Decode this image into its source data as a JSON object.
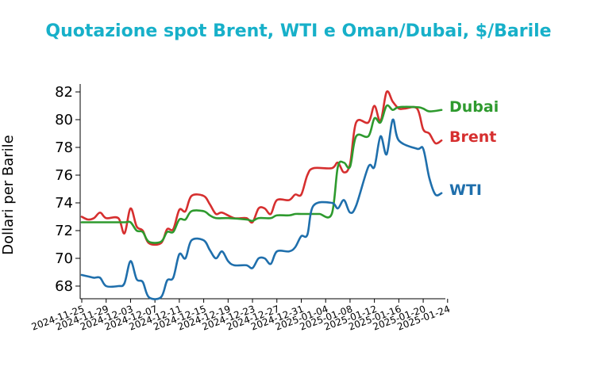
{
  "chart_data": {
    "type": "line",
    "title": "Quotazione spot Brent, WTI e Oman/Dubai, $/Barile",
    "xlabel": "",
    "ylabel": "Dollari per Barile",
    "ylim": [
      67.2,
      82.5
    ],
    "yticks": [
      68,
      70,
      72,
      74,
      76,
      78,
      80,
      82
    ],
    "x_start": "2024-11-25",
    "x_end": "2025-01-23",
    "xtick_labels": [
      "2024-11-25",
      "2024-11-29",
      "2024-12-03",
      "2024-12-07",
      "2024-12-11",
      "2024-12-15",
      "2024-12-19",
      "2024-12-23",
      "2024-12-27",
      "2024-12-31",
      "2025-01-04",
      "2025-01-08",
      "2025-01-12",
      "2025-01-16",
      "2025-01-20",
      "2025-01-24"
    ],
    "grid": false,
    "legend": "labels at line ends (right)",
    "title_color": "#17b0c9",
    "series": [
      {
        "name": "Brent",
        "color": "#d62f2f",
        "x": [
          "2024-11-25",
          "2024-11-26",
          "2024-11-27",
          "2024-11-28",
          "2024-11-29",
          "2024-12-01",
          "2024-12-02",
          "2024-12-03",
          "2024-12-04",
          "2024-12-05",
          "2024-12-06",
          "2024-12-08",
          "2024-12-09",
          "2024-12-10",
          "2024-12-11",
          "2024-12-12",
          "2024-12-13",
          "2024-12-15",
          "2024-12-16",
          "2024-12-17",
          "2024-12-18",
          "2024-12-20",
          "2024-12-22",
          "2024-12-23",
          "2024-12-24",
          "2024-12-25",
          "2024-12-26",
          "2024-12-27",
          "2024-12-29",
          "2024-12-30",
          "2024-12-31",
          "2025-01-01",
          "2025-01-02",
          "2025-01-05",
          "2025-01-06",
          "2025-01-07",
          "2025-01-08",
          "2025-01-09",
          "2025-01-11",
          "2025-01-12",
          "2025-01-13",
          "2025-01-14",
          "2025-01-15",
          "2025-01-16",
          "2025-01-17",
          "2025-01-19",
          "2025-01-20",
          "2025-01-21",
          "2025-01-22",
          "2025-01-23"
        ],
        "y": [
          73.0,
          72.8,
          72.9,
          73.3,
          72.9,
          72.9,
          71.8,
          73.6,
          72.3,
          72.0,
          71.1,
          71.1,
          72.1,
          72.1,
          73.5,
          73.4,
          74.5,
          74.5,
          73.9,
          73.2,
          73.3,
          72.9,
          72.9,
          72.6,
          73.6,
          73.6,
          73.2,
          74.2,
          74.2,
          74.6,
          74.6,
          76.0,
          76.5,
          76.5,
          76.9,
          76.2,
          76.8,
          79.8,
          79.8,
          81.0,
          79.9,
          82.0,
          81.3,
          80.8,
          80.8,
          80.8,
          79.3,
          79.0,
          78.3,
          78.5
        ]
      },
      {
        "name": "Dubai",
        "color": "#2e9a2e",
        "x": [
          "2024-11-25",
          "2024-11-27",
          "2024-11-29",
          "2024-12-02",
          "2024-12-03",
          "2024-12-04",
          "2024-12-05",
          "2024-12-06",
          "2024-12-08",
          "2024-12-09",
          "2024-12-10",
          "2024-12-11",
          "2024-12-12",
          "2024-12-13",
          "2024-12-15",
          "2024-12-16",
          "2024-12-17",
          "2024-12-19",
          "2024-12-22",
          "2024-12-23",
          "2024-12-24",
          "2024-12-26",
          "2024-12-27",
          "2024-12-29",
          "2024-12-30",
          "2024-12-31",
          "2025-01-02",
          "2025-01-03",
          "2025-01-05",
          "2025-01-06",
          "2025-01-07",
          "2025-01-08",
          "2025-01-09",
          "2025-01-11",
          "2025-01-12",
          "2025-01-13",
          "2025-01-14",
          "2025-01-15",
          "2025-01-16",
          "2025-01-19",
          "2025-01-20",
          "2025-01-21",
          "2025-01-23"
        ],
        "y": [
          72.6,
          72.6,
          72.6,
          72.6,
          72.6,
          72.0,
          71.9,
          71.2,
          71.2,
          71.9,
          71.9,
          72.8,
          72.8,
          73.4,
          73.4,
          73.1,
          72.9,
          72.9,
          72.8,
          72.7,
          72.9,
          72.9,
          73.1,
          73.1,
          73.2,
          73.2,
          73.2,
          73.2,
          73.2,
          76.6,
          76.9,
          76.6,
          78.8,
          78.8,
          80.1,
          79.8,
          81.0,
          80.7,
          80.9,
          80.9,
          80.8,
          80.6,
          80.7
        ]
      },
      {
        "name": "WTI",
        "color": "#1f6fac",
        "x": [
          "2024-11-25",
          "2024-11-26",
          "2024-11-27",
          "2024-11-28",
          "2024-11-29",
          "2024-12-01",
          "2024-12-02",
          "2024-12-03",
          "2024-12-04",
          "2024-12-05",
          "2024-12-06",
          "2024-12-08",
          "2024-12-09",
          "2024-12-10",
          "2024-12-11",
          "2024-12-12",
          "2024-12-13",
          "2024-12-15",
          "2024-12-16",
          "2024-12-17",
          "2024-12-18",
          "2024-12-19",
          "2024-12-20",
          "2024-12-22",
          "2024-12-23",
          "2024-12-24",
          "2024-12-25",
          "2024-12-26",
          "2024-12-27",
          "2024-12-29",
          "2024-12-30",
          "2024-12-31",
          "2025-01-01",
          "2025-01-02",
          "2025-01-05",
          "2025-01-06",
          "2025-01-07",
          "2025-01-08",
          "2025-01-09",
          "2025-01-11",
          "2025-01-12",
          "2025-01-13",
          "2025-01-14",
          "2025-01-15",
          "2025-01-16",
          "2025-01-19",
          "2025-01-20",
          "2025-01-21",
          "2025-01-22",
          "2025-01-23"
        ],
        "y": [
          68.8,
          68.7,
          68.6,
          68.6,
          68.0,
          68.0,
          68.2,
          69.8,
          68.5,
          68.3,
          67.2,
          67.2,
          68.4,
          68.6,
          70.3,
          70.0,
          71.3,
          71.3,
          70.6,
          70.0,
          70.5,
          69.8,
          69.5,
          69.5,
          69.3,
          70.0,
          70.0,
          69.6,
          70.5,
          70.5,
          70.8,
          71.6,
          71.7,
          73.8,
          74.0,
          73.6,
          74.2,
          73.3,
          73.8,
          76.6,
          76.6,
          78.8,
          77.5,
          80.0,
          78.5,
          77.9,
          77.9,
          75.8,
          74.6,
          74.7
        ]
      }
    ]
  }
}
